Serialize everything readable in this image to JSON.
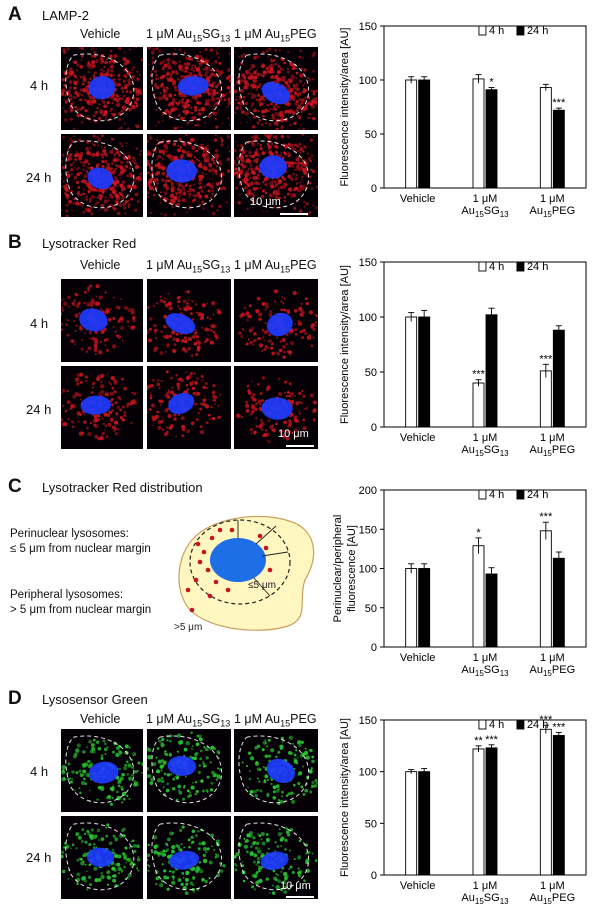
{
  "columns": [
    "Vehicle",
    "1 μM Au15SG13",
    "1 μM Au15PEG"
  ],
  "panels": {
    "A": {
      "letter": "A",
      "title": "LAMP-2",
      "rows": [
        "4 h",
        "24 h"
      ],
      "scale": "10 μm"
    },
    "B": {
      "letter": "B",
      "title": "Lysotracker Red",
      "rows": [
        "4 h",
        "24 h"
      ],
      "scale": "10 μm"
    },
    "C": {
      "letter": "C",
      "title": "Lysotracker Red distribution",
      "perinuclear": "Perinuclear lysosomes:",
      "perinuclear_def": "≤ 5 μm from nuclear margin",
      "peripheral": "Peripheral lysosomes:",
      "peripheral_def": "> 5 μm from nuclear margin",
      "le5": "≤5 μm",
      "gt5": ">5 μm"
    },
    "D": {
      "letter": "D",
      "title": "Lysosensor Green",
      "rows": [
        "4 h",
        "24 h"
      ],
      "scale": "10 μm"
    }
  },
  "colors": {
    "red_stain": "#c8141e",
    "blue_nucleus": "#1e3cff",
    "green_stain": "#28c832",
    "bar_4h": "#ffffff",
    "bar_24h": "#000000"
  },
  "chart_data": [
    {
      "type": "bar",
      "panel": "A",
      "ylabel": "Fluorescence intensity/area [AU]",
      "ylim": [
        0,
        150
      ],
      "yticks": [
        0,
        50,
        100,
        150
      ],
      "categories": [
        "Vehicle",
        "1 μM Au15SG13",
        "1 μM Au15PEG"
      ],
      "category_lines": [
        [
          "Vehicle"
        ],
        [
          "1 μM",
          "Au15SG13"
        ],
        [
          "1 μM",
          "Au15PEG"
        ]
      ],
      "series": [
        {
          "name": "4 h",
          "values": [
            100,
            101,
            93
          ],
          "errors": [
            3,
            4,
            3
          ],
          "sig": [
            "",
            "",
            ""
          ]
        },
        {
          "name": "24 h",
          "values": [
            100,
            91,
            72
          ],
          "errors": [
            3,
            2,
            2
          ],
          "sig": [
            "",
            "*",
            "***"
          ]
        }
      ]
    },
    {
      "type": "bar",
      "panel": "B",
      "ylabel": "Fluorescence intensity/area [AU]",
      "ylim": [
        0,
        150
      ],
      "yticks": [
        0,
        50,
        100,
        150
      ],
      "categories": [
        "Vehicle",
        "1 μM Au15SG13",
        "1 μM Au15PEG"
      ],
      "category_lines": [
        [
          "Vehicle"
        ],
        [
          "1 μM",
          "Au15SG13"
        ],
        [
          "1 μM",
          "Au15PEG"
        ]
      ],
      "series": [
        {
          "name": "4 h",
          "values": [
            100,
            40,
            51
          ],
          "errors": [
            4,
            3,
            6
          ],
          "sig": [
            "",
            "***",
            "***"
          ]
        },
        {
          "name": "24 h",
          "values": [
            100,
            102,
            88
          ],
          "errors": [
            6,
            6,
            4
          ],
          "sig": [
            "",
            "",
            ""
          ]
        }
      ]
    },
    {
      "type": "bar",
      "panel": "C",
      "ylabel": "Perinuclear/peripheral fluorescence [AU]",
      "ylabel_lines": [
        "Perinuclear/peripheral",
        "fluorescence [AU]"
      ],
      "ylim": [
        0,
        200
      ],
      "yticks": [
        0,
        50,
        100,
        150,
        200
      ],
      "categories": [
        "Vehicle",
        "1 μM Au15SG13",
        "1 μM Au15PEG"
      ],
      "category_lines": [
        [
          "Vehicle"
        ],
        [
          "1 μM",
          "Au15SG13"
        ],
        [
          "1 μM",
          "Au15PEG"
        ]
      ],
      "series": [
        {
          "name": "4 h",
          "values": [
            100,
            129,
            148
          ],
          "errors": [
            6,
            10,
            11
          ],
          "sig": [
            "",
            "*",
            "***"
          ]
        },
        {
          "name": "24 h",
          "values": [
            100,
            93,
            113
          ],
          "errors": [
            6,
            8,
            8
          ],
          "sig": [
            "",
            "",
            ""
          ]
        }
      ]
    },
    {
      "type": "bar",
      "panel": "D",
      "ylabel": "Fluorescence intensity/area [AU]",
      "ylim": [
        0,
        150
      ],
      "yticks": [
        0,
        50,
        100,
        150
      ],
      "categories": [
        "Vehicle",
        "1 μM Au15SG13",
        "1 μM Au15PEG"
      ],
      "category_lines": [
        [
          "Vehicle"
        ],
        [
          "1 μM",
          "Au15SG13"
        ],
        [
          "1 μM",
          "Au15PEG"
        ]
      ],
      "series": [
        {
          "name": "4 h",
          "values": [
            100,
            122,
            141
          ],
          "errors": [
            2,
            3,
            4
          ],
          "sig": [
            "",
            "**",
            "***"
          ]
        },
        {
          "name": "24 h",
          "values": [
            100,
            123,
            135
          ],
          "errors": [
            3,
            3,
            3
          ],
          "sig": [
            "",
            "***",
            "***"
          ]
        }
      ]
    }
  ]
}
